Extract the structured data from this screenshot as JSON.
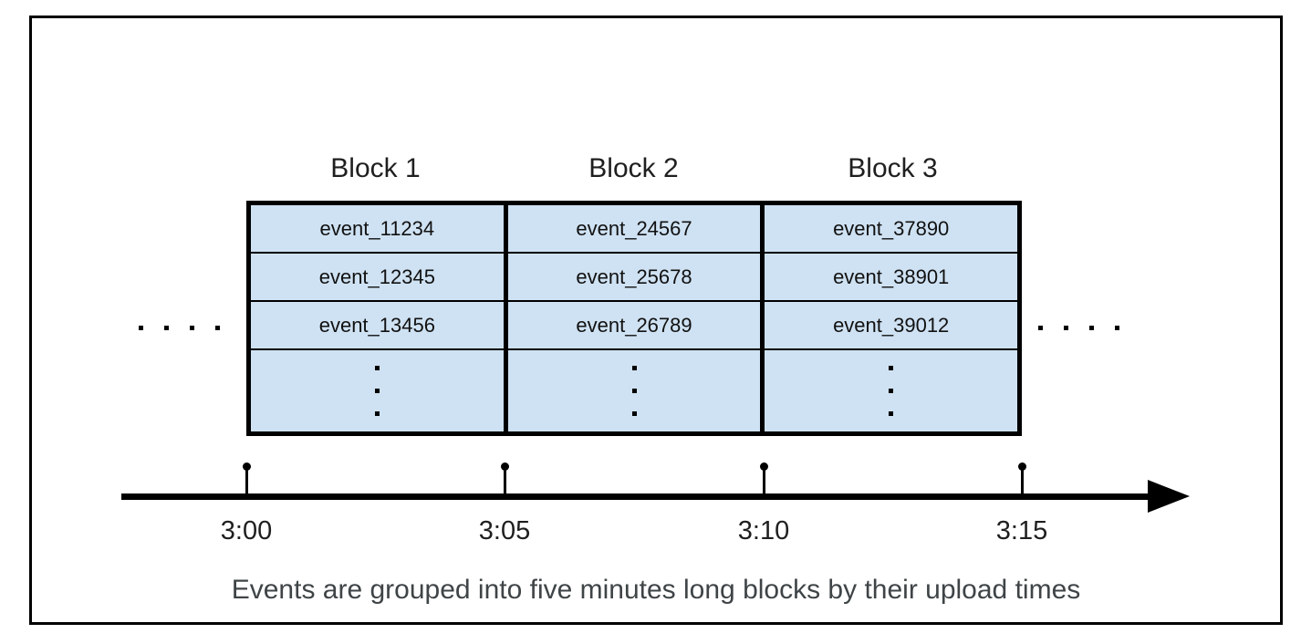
{
  "figure": {
    "caption": "Events are grouped into five minutes long blocks by their upload times",
    "blocks": [
      {
        "label": "Block 1",
        "events": [
          "event_11234",
          "event_12345",
          "event_13456"
        ]
      },
      {
        "label": "Block 2",
        "events": [
          "event_24567",
          "event_25678",
          "event_26789"
        ]
      },
      {
        "label": "Block 3",
        "events": [
          "event_37890",
          "event_38901",
          "event_39012"
        ]
      }
    ],
    "timeline": {
      "tick_labels": [
        "3:00",
        "3:05",
        "3:10",
        "3:15"
      ],
      "direction": "left-to-right",
      "interval": "5 minutes"
    },
    "icons": {
      "left_ellipsis": "horizontal-dots-icon",
      "right_ellipsis": "horizontal-dots-icon",
      "block_more_rows": "vertical-dots-icon",
      "arrow": "right-arrowhead-icon"
    },
    "colors": {
      "block_fill": "#cfe2f3",
      "border": "#000000",
      "label_text": "#1f1f1f",
      "caption_text": "#3f4447",
      "background": "#ffffff"
    }
  }
}
